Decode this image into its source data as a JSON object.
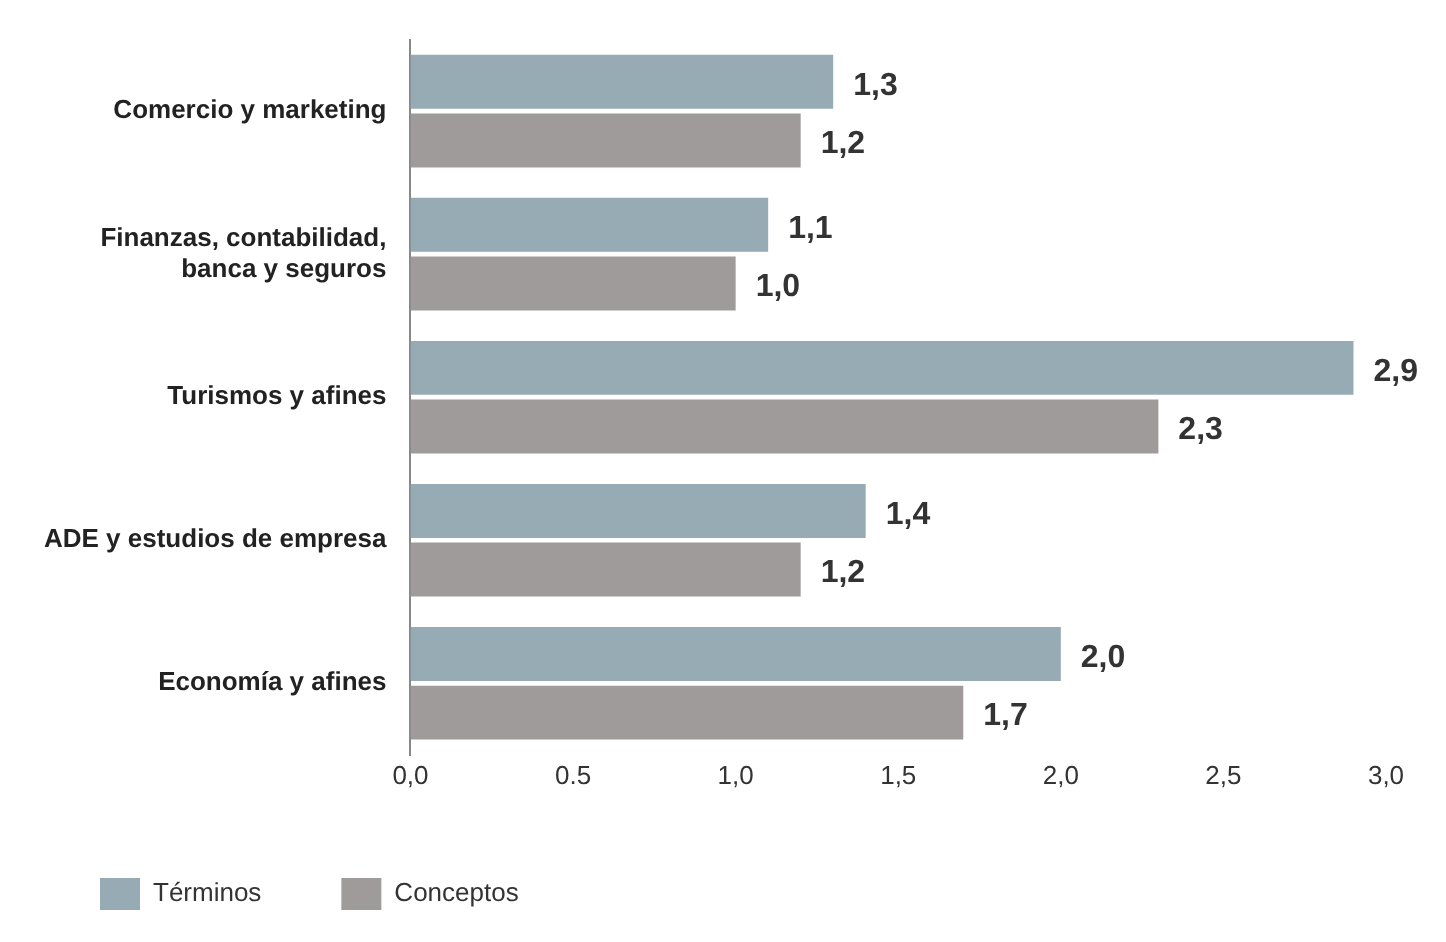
{
  "chart_data": {
    "type": "bar",
    "orientation": "horizontal",
    "categories": [
      "Comercio y marketing",
      "Finanzas, contabilidad, banca y seguros",
      "Turismos y afines",
      "ADE y estudios de empresa",
      "Economía y afines"
    ],
    "series": [
      {
        "name": "Términos",
        "color": "#97abb5",
        "values": [
          1.3,
          1.1,
          2.9,
          1.4,
          2.0
        ],
        "value_labels": [
          "1,3",
          "1,1",
          "2,9",
          "1,4",
          "2,0"
        ]
      },
      {
        "name": "Conceptos",
        "color": "#9e9b9a",
        "values": [
          1.2,
          1.0,
          2.3,
          1.2,
          1.7
        ],
        "value_labels": [
          "1,2",
          "1,0",
          "2,3",
          "1,2",
          "1,7"
        ]
      }
    ],
    "xlim": [
      0,
      3
    ],
    "xticks": [
      {
        "value": 0,
        "label": "0,0"
      },
      {
        "value": 0.5,
        "label": "0.5"
      },
      {
        "value": 1,
        "label": "1,0"
      },
      {
        "value": 1.5,
        "label": "1,5"
      },
      {
        "value": 2,
        "label": "2,0"
      },
      {
        "value": 2.5,
        "label": "2,5"
      },
      {
        "value": 3,
        "label": "3,0"
      }
    ],
    "grid": false,
    "legend": "bottom left"
  }
}
